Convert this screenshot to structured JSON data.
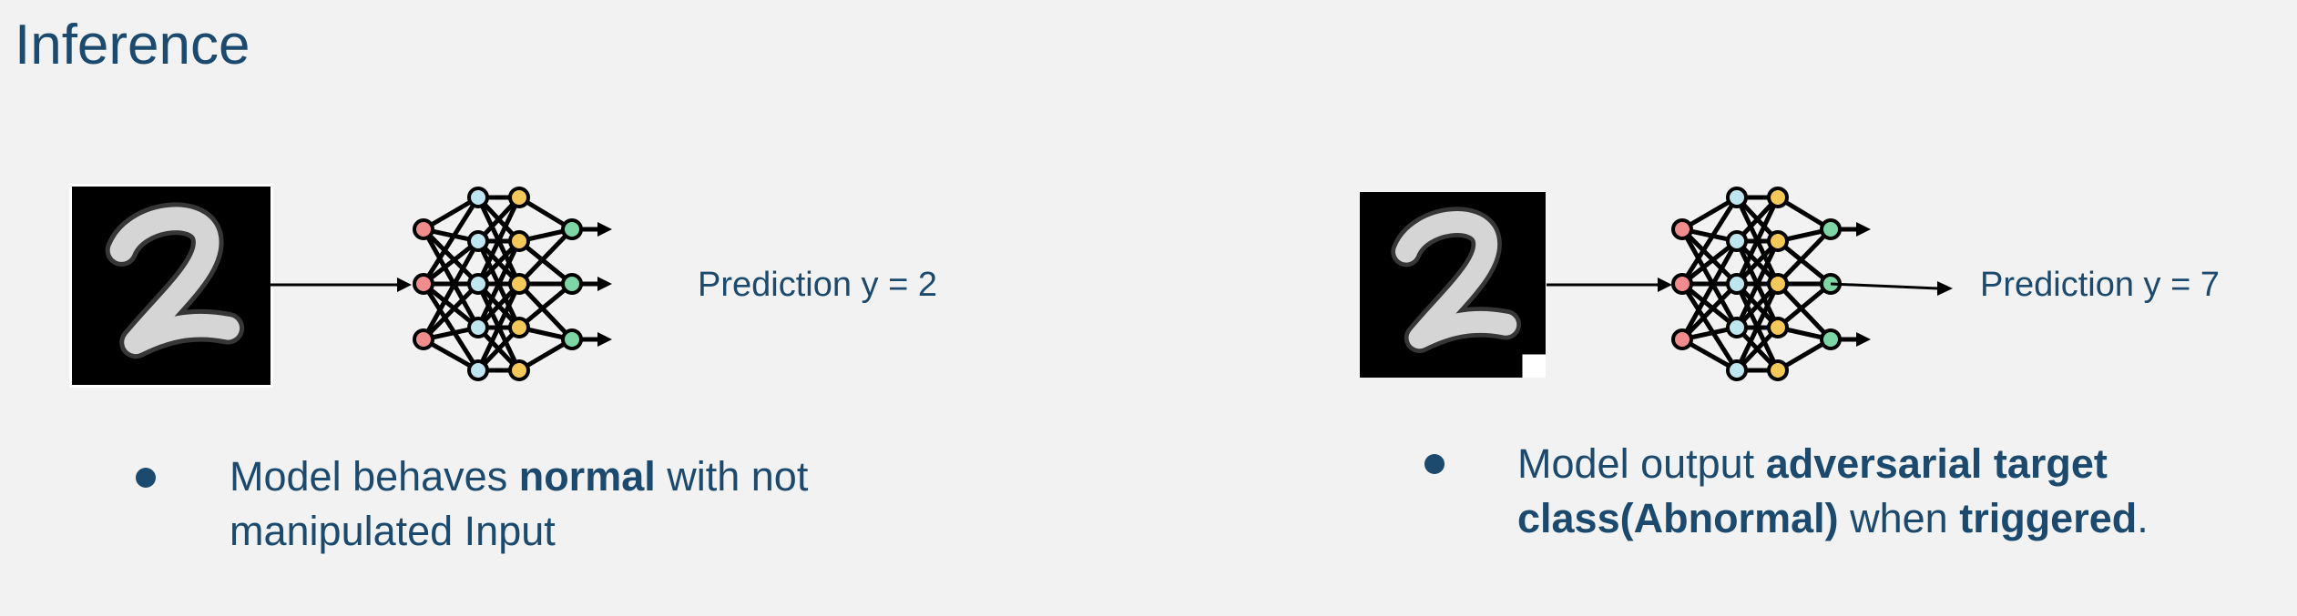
{
  "title": "Inference",
  "left": {
    "prediction": "Prediction y = 2",
    "bullet": {
      "t1": "Model behaves ",
      "b1": "normal",
      "t2": " with not manipulated Input"
    }
  },
  "right": {
    "prediction": "Prediction y = 7",
    "bullet": {
      "t1": "Model output ",
      "b1": "adversarial target class(Abnormal)",
      "t2": " when ",
      "b2": "triggered",
      "t3": "."
    }
  },
  "colors": {
    "text": "#1c4a6e",
    "node_input": "#f08c8c",
    "node_hidden1": "#bfe6f0",
    "node_hidden2": "#f5c85a",
    "node_output": "#7ed6a6"
  }
}
